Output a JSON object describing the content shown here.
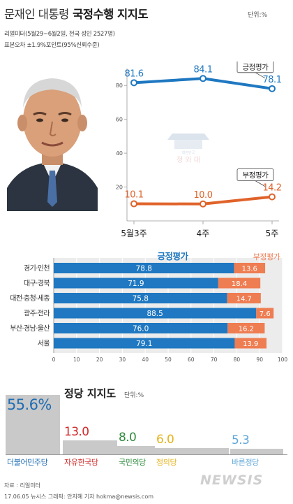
{
  "header": {
    "title_prefix": "문재인 대통령",
    "title_emph": "국정수행 지지도",
    "unit": "단위:%",
    "source_note": "리얼미터(5월29~6월2일, 전국 성인 2527명)",
    "margin_note": "표본오차 ±1.9%포인트(95%신뢰수준)"
  },
  "watermark": {
    "line1": "대한민국",
    "line2": "청 와 대"
  },
  "chart_data": [
    {
      "type": "line",
      "title": "",
      "categories": [
        "5월3주",
        "4주",
        "5주"
      ],
      "series": [
        {
          "name": "긍정평가",
          "values": [
            81.6,
            84.1,
            78.1
          ],
          "labels": [
            "81.6",
            "84.1",
            "78.1"
          ],
          "color": "#1f78c1"
        },
        {
          "name": "부정평가",
          "values": [
            10.1,
            10.0,
            14.2
          ],
          "labels": [
            "10.1",
            "10.0",
            "14.2"
          ],
          "color": "#e0632a"
        }
      ],
      "ylim": [
        0,
        90
      ],
      "yticks": [
        "20",
        "40",
        "60",
        "80"
      ]
    },
    {
      "type": "bar",
      "stacked": true,
      "orientation": "horizontal",
      "categories": [
        "경기·인천",
        "대구·경북",
        "대전·충청·세종",
        "광주·전라",
        "부산·경남·울산",
        "서울"
      ],
      "series": [
        {
          "name": "긍정평가",
          "values": [
            78.8,
            71.9,
            75.8,
            88.5,
            76.0,
            79.1
          ],
          "labels": [
            "78.8",
            "71.9",
            "75.8",
            "88.5",
            "76.0",
            "79.1"
          ],
          "color": "#1f78c1"
        },
        {
          "name": "부정평가",
          "values": [
            13.6,
            18.4,
            14.7,
            7.6,
            16.2,
            13.9
          ],
          "labels": [
            "13.6",
            "18.4",
            "14.7",
            "7.6",
            "16.2",
            "13.9"
          ],
          "color": "#ef7d52"
        }
      ],
      "xlim": [
        0,
        100
      ],
      "xticks": [
        "0",
        "10",
        "20",
        "30",
        "40",
        "50",
        "60",
        "70",
        "80",
        "90",
        "100"
      ]
    },
    {
      "type": "bar",
      "title": "정당 지지도",
      "unit": "단위:%",
      "categories": [
        "더불어민주당",
        "자유한국당",
        "국민의당",
        "정의당",
        "바른정당"
      ],
      "values": [
        55.6,
        13.0,
        8.0,
        6.0,
        5.3
      ],
      "labels": [
        "55.6%",
        "13.0",
        "8.0",
        "6.0",
        "5.3"
      ],
      "colors": [
        "#1f6db3",
        "#d12a2a",
        "#2f8a3c",
        "#e3b21a",
        "#5fa6d6"
      ]
    }
  ],
  "footer": {
    "source": "자료 : 리얼미터",
    "credit": "17.06.05 뉴시스 그래픽: 안지혜 기자 hokma@newsis.com",
    "logo": "NEWSIS"
  }
}
